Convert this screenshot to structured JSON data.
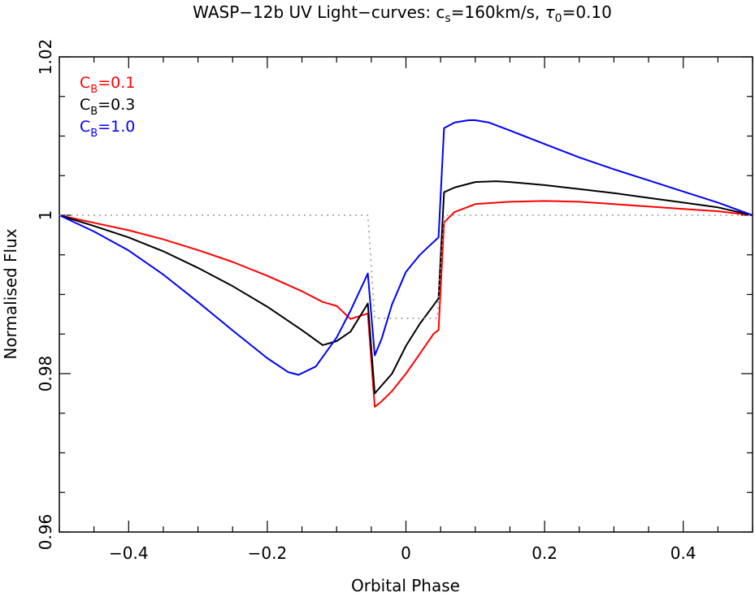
{
  "chart_data": {
    "type": "line",
    "title": {
      "prefix": "WASP−12b UV Light−curves: c",
      "sub1": "s",
      "mid": "=160km/s, ",
      "tau": "τ",
      "sub2": "0",
      "suffix": "=0.10"
    },
    "xlabel": "Orbital Phase",
    "ylabel": "Normalised Flux",
    "xlim": [
      -0.5,
      0.5
    ],
    "ylim": [
      0.96,
      1.02
    ],
    "xticks_major": [
      -0.4,
      -0.2,
      0,
      0.2,
      0.4
    ],
    "xtick_labels": [
      "−0.4",
      "−0.2",
      "0",
      "0.2",
      "0.4"
    ],
    "xticks_minor_step": 0.05,
    "yticks_major": [
      0.96,
      0.98,
      1.0,
      1.02
    ],
    "ytick_labels": [
      "0.96",
      "0.98",
      "1",
      "1.02"
    ],
    "yticks_minor_step": 0.005,
    "grid": false,
    "legend_position": "top-left",
    "series": [
      {
        "label_main": "C",
        "label_sub": "B",
        "label_value": "=0.1",
        "color": "#ff0000",
        "x": [
          -0.5,
          -0.45,
          -0.4,
          -0.35,
          -0.3,
          -0.25,
          -0.2,
          -0.15,
          -0.12,
          -0.1,
          -0.08,
          -0.055,
          -0.045,
          -0.035,
          -0.02,
          0,
          0.02,
          0.04,
          0.047,
          0.055,
          0.07,
          0.1,
          0.15,
          0.2,
          0.25,
          0.3,
          0.35,
          0.4,
          0.45,
          0.5
        ],
        "y": [
          1.0,
          0.99905,
          0.9981,
          0.99695,
          0.9956,
          0.9941,
          0.99235,
          0.9904,
          0.98905,
          0.98855,
          0.9869,
          0.9876,
          0.9758,
          0.9765,
          0.9778,
          0.98,
          0.9825,
          0.98505,
          0.9855,
          0.9991,
          1.0004,
          1.0014,
          1.0017,
          1.0018,
          1.0017,
          1.0014,
          1.0011,
          1.0008,
          1.0005,
          1.0
        ]
      },
      {
        "label_main": "C",
        "label_sub": "B",
        "label_value": "=0.3",
        "color": "#000000",
        "x": [
          -0.5,
          -0.45,
          -0.4,
          -0.35,
          -0.3,
          -0.25,
          -0.2,
          -0.15,
          -0.12,
          -0.1,
          -0.08,
          -0.055,
          -0.045,
          -0.035,
          -0.02,
          0,
          0.02,
          0.04,
          0.047,
          0.055,
          0.07,
          0.1,
          0.13,
          0.15,
          0.2,
          0.25,
          0.3,
          0.35,
          0.4,
          0.45,
          0.5
        ],
        "y": [
          1.0,
          0.99865,
          0.9972,
          0.99545,
          0.99335,
          0.99105,
          0.98845,
          0.9855,
          0.9836,
          0.9841,
          0.9853,
          0.98885,
          0.9775,
          0.9785,
          0.98,
          0.9835,
          0.9863,
          0.98865,
          0.9895,
          1.0029,
          1.0035,
          1.0042,
          1.0043,
          1.0042,
          1.0038,
          1.0033,
          1.0028,
          1.0022,
          1.0016,
          1.001,
          1.0
        ]
      },
      {
        "label_main": "C",
        "label_sub": "B",
        "label_value": "=1.0",
        "color": "#0000ff",
        "x": [
          -0.5,
          -0.45,
          -0.4,
          -0.35,
          -0.3,
          -0.25,
          -0.2,
          -0.17,
          -0.155,
          -0.13,
          -0.1,
          -0.08,
          -0.055,
          -0.045,
          -0.035,
          -0.02,
          0,
          0.02,
          0.04,
          0.047,
          0.055,
          0.07,
          0.09,
          0.1,
          0.12,
          0.15,
          0.2,
          0.25,
          0.3,
          0.35,
          0.4,
          0.45,
          0.5
        ],
        "y": [
          1.0,
          0.99795,
          0.99555,
          0.9925,
          0.98905,
          0.98545,
          0.98195,
          0.9802,
          0.97985,
          0.9809,
          0.98455,
          0.98795,
          0.99265,
          0.9823,
          0.9844,
          0.98875,
          0.99285,
          0.995,
          0.99665,
          0.9972,
          1.011,
          1.0117,
          1.012,
          1.012,
          1.0117,
          1.0107,
          1.009,
          1.0073,
          1.0058,
          1.0044,
          1.003,
          1.0016,
          1.0
        ]
      },
      {
        "label_main": "",
        "label_sub": "",
        "label_value": "",
        "color": "#999999",
        "dashed": true,
        "x": [
          -0.5,
          -0.055,
          -0.045,
          0.045,
          0.055,
          0.5
        ],
        "y": [
          1.0,
          1.0,
          0.987,
          0.987,
          1.0,
          1.0
        ]
      }
    ]
  }
}
